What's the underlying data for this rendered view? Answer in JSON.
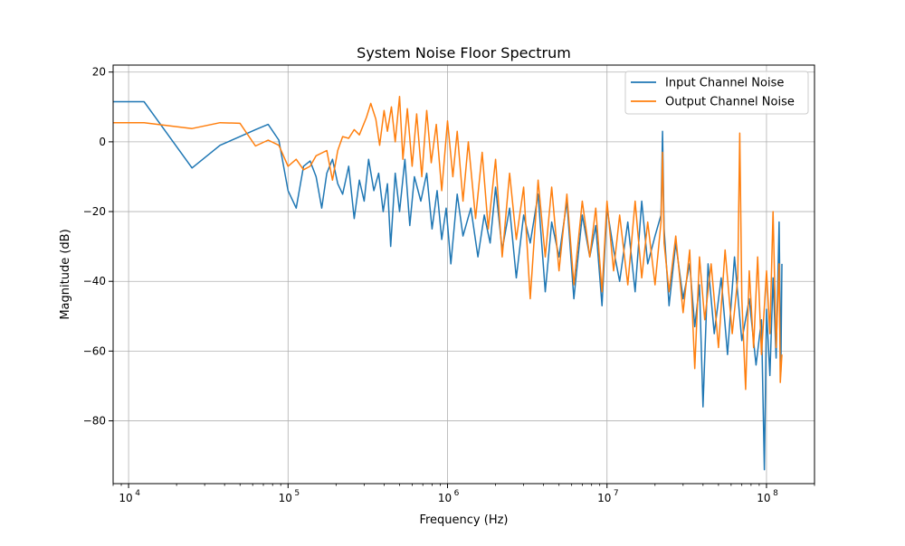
{
  "chart_data": {
    "type": "line",
    "title": "System Noise Floor Spectrum",
    "xlabel": "Frequency (Hz)",
    "ylabel": "Magnitude (dB)",
    "x_scale": "log",
    "xlim": [
      8000,
      200000000
    ],
    "ylim": [
      -98,
      22
    ],
    "x_ticks": [
      {
        "value": 10000,
        "base": "10",
        "exp": "4"
      },
      {
        "value": 100000,
        "base": "10",
        "exp": "5"
      },
      {
        "value": 1000000,
        "base": "10",
        "exp": "6"
      },
      {
        "value": 10000000,
        "base": "10",
        "exp": "7"
      },
      {
        "value": 100000000,
        "base": "10",
        "exp": "8"
      }
    ],
    "y_ticks": [
      {
        "value": 20,
        "label": "20"
      },
      {
        "value": 0,
        "label": "0"
      },
      {
        "value": -20,
        "label": "−20"
      },
      {
        "value": -40,
        "label": "−40"
      },
      {
        "value": -60,
        "label": "−60"
      },
      {
        "value": -80,
        "label": "−80"
      }
    ],
    "grid": true,
    "legend_position": "top-right",
    "series": [
      {
        "name": "Input Channel Noise",
        "color": "#1f77b4",
        "points": [
          [
            8000,
            11.5
          ],
          [
            12500,
            11.5
          ],
          [
            25000,
            -7.5
          ],
          [
            37500,
            -1
          ],
          [
            50000,
            1.5
          ],
          [
            62500,
            3.5
          ],
          [
            75000,
            5
          ],
          [
            87500,
            0.5
          ],
          [
            100000,
            -14
          ],
          [
            112500,
            -19
          ],
          [
            125000,
            -7
          ],
          [
            137500,
            -5.5
          ],
          [
            150000,
            -10
          ],
          [
            162500,
            -19
          ],
          [
            175000,
            -9
          ],
          [
            190000,
            -5
          ],
          [
            205000,
            -12
          ],
          [
            220000,
            -15
          ],
          [
            240000,
            -7
          ],
          [
            260000,
            -22
          ],
          [
            280000,
            -11
          ],
          [
            300000,
            -17
          ],
          [
            320000,
            -5
          ],
          [
            345000,
            -14
          ],
          [
            370000,
            -9
          ],
          [
            395000,
            -20
          ],
          [
            420000,
            -12
          ],
          [
            440000,
            -30
          ],
          [
            470000,
            -9
          ],
          [
            500000,
            -20
          ],
          [
            540000,
            -5
          ],
          [
            580000,
            -24
          ],
          [
            620000,
            -10
          ],
          [
            680000,
            -17
          ],
          [
            740000,
            -9
          ],
          [
            800000,
            -25
          ],
          [
            860000,
            -14
          ],
          [
            920000,
            -28
          ],
          [
            980000,
            -19
          ],
          [
            1050000,
            -35
          ],
          [
            1150000,
            -15
          ],
          [
            1250000,
            -27
          ],
          [
            1400000,
            -19
          ],
          [
            1550000,
            -33
          ],
          [
            1700000,
            -21
          ],
          [
            1850000,
            -29
          ],
          [
            2000000,
            -13
          ],
          [
            2200000,
            -31
          ],
          [
            2450000,
            -19
          ],
          [
            2700000,
            -39
          ],
          [
            3000000,
            -21
          ],
          [
            3300000,
            -29
          ],
          [
            3700000,
            -15
          ],
          [
            4100000,
            -43
          ],
          [
            4500000,
            -23
          ],
          [
            5000000,
            -33
          ],
          [
            5600000,
            -17
          ],
          [
            6200000,
            -45
          ],
          [
            7000000,
            -21
          ],
          [
            7800000,
            -33
          ],
          [
            8500000,
            -24
          ],
          [
            9300000,
            -47
          ],
          [
            10000000,
            -19
          ],
          [
            11000000,
            -31
          ],
          [
            12000000,
            -40
          ],
          [
            13500000,
            -23
          ],
          [
            15000000,
            -43
          ],
          [
            16500000,
            -17
          ],
          [
            18000000,
            -35
          ],
          [
            20000000,
            -27
          ],
          [
            21800000,
            -21
          ],
          [
            22300000,
            3
          ],
          [
            22800000,
            -25
          ],
          [
            24500000,
            -47
          ],
          [
            27000000,
            -29
          ],
          [
            30000000,
            -45
          ],
          [
            33000000,
            -35
          ],
          [
            35500000,
            -53
          ],
          [
            38000000,
            -41
          ],
          [
            40000000,
            -76
          ],
          [
            43000000,
            -35
          ],
          [
            47000000,
            -55
          ],
          [
            52000000,
            -39
          ],
          [
            57000000,
            -61
          ],
          [
            63000000,
            -33
          ],
          [
            70000000,
            -57
          ],
          [
            78000000,
            -45
          ],
          [
            86000000,
            -64
          ],
          [
            93000000,
            -51
          ],
          [
            97000000,
            -94
          ],
          [
            100000000,
            -48
          ],
          [
            105000000,
            -67
          ],
          [
            110000000,
            -39
          ],
          [
            115000000,
            -62
          ],
          [
            120000000,
            -23
          ],
          [
            123000000,
            -66
          ],
          [
            125000000,
            -35
          ]
        ]
      },
      {
        "name": "Output Channel Noise",
        "color": "#ff7f0e",
        "points": [
          [
            8000,
            5.5
          ],
          [
            12500,
            5.5
          ],
          [
            25000,
            3.8
          ],
          [
            37500,
            5.5
          ],
          [
            50000,
            5.3
          ],
          [
            62500,
            -1.2
          ],
          [
            75000,
            0.5
          ],
          [
            87500,
            -1
          ],
          [
            100000,
            -7
          ],
          [
            112500,
            -5
          ],
          [
            125000,
            -8
          ],
          [
            137500,
            -7
          ],
          [
            150000,
            -4
          ],
          [
            175000,
            -2.5
          ],
          [
            190000,
            -11
          ],
          [
            205000,
            -2.5
          ],
          [
            220000,
            1.5
          ],
          [
            240000,
            1
          ],
          [
            260000,
            3.5
          ],
          [
            280000,
            2
          ],
          [
            310000,
            7
          ],
          [
            330000,
            11
          ],
          [
            355000,
            6.5
          ],
          [
            375000,
            -1
          ],
          [
            400000,
            9
          ],
          [
            420000,
            3
          ],
          [
            445000,
            10
          ],
          [
            470000,
            0
          ],
          [
            500000,
            13
          ],
          [
            525000,
            -5
          ],
          [
            560000,
            9.5
          ],
          [
            600000,
            -7
          ],
          [
            640000,
            8
          ],
          [
            690000,
            -10
          ],
          [
            740000,
            9
          ],
          [
            790000,
            -6
          ],
          [
            850000,
            5
          ],
          [
            920000,
            -14
          ],
          [
            1000000,
            6
          ],
          [
            1080000,
            -10
          ],
          [
            1150000,
            3
          ],
          [
            1250000,
            -17
          ],
          [
            1350000,
            0
          ],
          [
            1500000,
            -22
          ],
          [
            1650000,
            -3
          ],
          [
            1800000,
            -25
          ],
          [
            2000000,
            -5
          ],
          [
            2200000,
            -33
          ],
          [
            2450000,
            -9
          ],
          [
            2700000,
            -28
          ],
          [
            3000000,
            -13
          ],
          [
            3300000,
            -45
          ],
          [
            3700000,
            -11
          ],
          [
            4100000,
            -33
          ],
          [
            4500000,
            -13
          ],
          [
            5000000,
            -37
          ],
          [
            5600000,
            -15
          ],
          [
            6200000,
            -41
          ],
          [
            7000000,
            -17
          ],
          [
            7800000,
            -33
          ],
          [
            8500000,
            -19
          ],
          [
            9300000,
            -43
          ],
          [
            10000000,
            -17
          ],
          [
            11000000,
            -37
          ],
          [
            12000000,
            -21
          ],
          [
            13500000,
            -41
          ],
          [
            15000000,
            -17
          ],
          [
            16500000,
            -39
          ],
          [
            18000000,
            -23
          ],
          [
            20000000,
            -41
          ],
          [
            21800000,
            -23
          ],
          [
            22300000,
            -3
          ],
          [
            22800000,
            -29
          ],
          [
            24500000,
            -43
          ],
          [
            27000000,
            -27
          ],
          [
            30000000,
            -49
          ],
          [
            33000000,
            -31
          ],
          [
            35500000,
            -65
          ],
          [
            38000000,
            -33
          ],
          [
            41000000,
            -51
          ],
          [
            45000000,
            -35
          ],
          [
            50000000,
            -59
          ],
          [
            55000000,
            -31
          ],
          [
            61000000,
            -55
          ],
          [
            66000000,
            -39
          ],
          [
            68000000,
            2.5
          ],
          [
            70000000,
            -45
          ],
          [
            74000000,
            -71
          ],
          [
            78000000,
            -37
          ],
          [
            83000000,
            -59
          ],
          [
            88000000,
            -33
          ],
          [
            93000000,
            -61
          ],
          [
            100000000,
            -37
          ],
          [
            105000000,
            -55
          ],
          [
            110000000,
            -20
          ],
          [
            115000000,
            -59
          ],
          [
            120000000,
            -35
          ],
          [
            122000000,
            -69
          ],
          [
            125000000,
            -61
          ]
        ]
      }
    ]
  }
}
